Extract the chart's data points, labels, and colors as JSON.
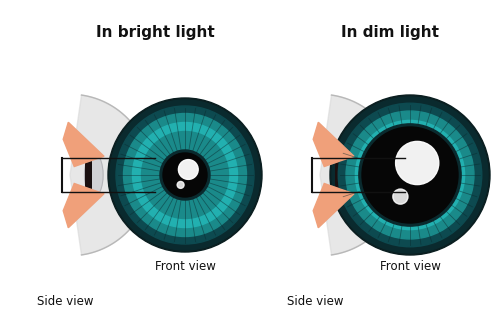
{
  "title_left": "In bright light",
  "title_right": "In dim light",
  "label_front": "Front view",
  "label_side": "Side view",
  "bg_color": "#ffffff",
  "iris_outer_dark": "#0a2a2e",
  "iris_ring1": "#0d4a50",
  "iris_ring2": "#1a8a8a",
  "iris_ring3": "#22b0b0",
  "iris_ring4": "#30c8c0",
  "iris_edge": "#0a1e20",
  "pupil_color": "#060606",
  "sclera_color": "#d8d8d8",
  "sclera_edge": "#b8b8b8",
  "cornea_color": "#c8c8cc",
  "eyelid_color": "#f0a07a",
  "eyelid_dark": "#c07860",
  "iris_dark_bar": "#1a1a1a",
  "connector_color": "#111111",
  "shadow_color": "#bbbbbb",
  "title_fontsize": 11,
  "label_fontsize": 8.5
}
